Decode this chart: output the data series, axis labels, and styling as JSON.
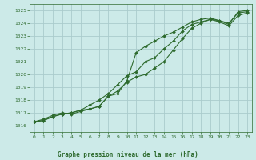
{
  "title": "Graphe pression niveau de la mer (hPa)",
  "bg_color": "#cceae8",
  "grid_color": "#aacccc",
  "line_color": "#2d6a2d",
  "xlim": [
    -0.5,
    23.5
  ],
  "ylim": [
    1015.5,
    1025.5
  ],
  "yticks": [
    1016,
    1017,
    1018,
    1019,
    1020,
    1021,
    1022,
    1023,
    1024,
    1025
  ],
  "xticks": [
    0,
    1,
    2,
    3,
    4,
    5,
    6,
    7,
    8,
    9,
    10,
    11,
    12,
    13,
    14,
    15,
    16,
    17,
    18,
    19,
    20,
    21,
    22,
    23
  ],
  "series": [
    [
      1016.3,
      1016.5,
      1016.8,
      1017.0,
      1016.9,
      1017.1,
      1017.3,
      1017.5,
      1018.3,
      1018.5,
      1019.5,
      1021.7,
      1022.2,
      1022.6,
      1023.0,
      1023.3,
      1023.7,
      1024.1,
      1024.3,
      1024.4,
      1024.2,
      1023.9,
      1024.9,
      1025.0
    ],
    [
      1016.3,
      1016.4,
      1016.7,
      1016.9,
      1017.0,
      1017.2,
      1017.6,
      1018.0,
      1018.5,
      1019.2,
      1019.9,
      1020.2,
      1021.0,
      1021.3,
      1022.0,
      1022.6,
      1023.4,
      1023.9,
      1024.1,
      1024.3,
      1024.1,
      1023.8,
      1024.6,
      1024.8
    ],
    [
      1016.3,
      1016.4,
      1016.7,
      1016.9,
      1017.0,
      1017.2,
      1017.3,
      1017.5,
      1018.3,
      1018.7,
      1019.4,
      1019.8,
      1020.0,
      1020.5,
      1021.0,
      1021.9,
      1022.8,
      1023.6,
      1024.0,
      1024.3,
      1024.2,
      1024.0,
      1024.8,
      1024.9
    ]
  ]
}
